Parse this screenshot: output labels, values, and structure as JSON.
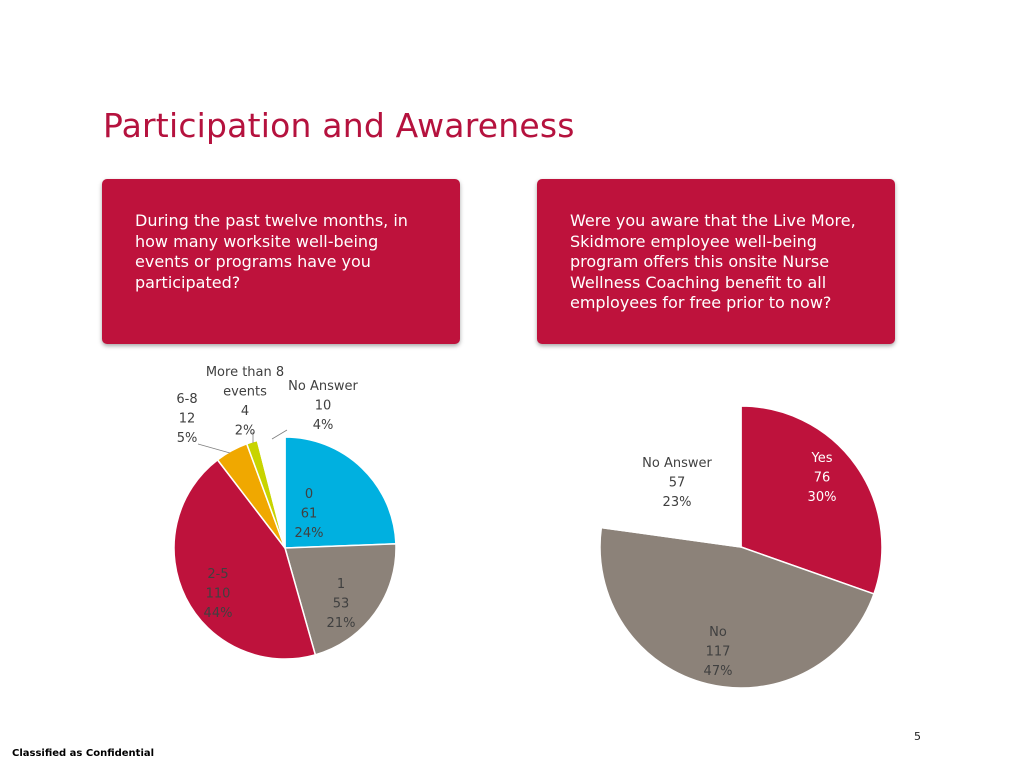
{
  "slide": {
    "title": "Participation and Awareness",
    "page_number": "5",
    "footer": "Classified as Confidential"
  },
  "questions": [
    "During the past twelve months, in how many worksite well-being events or programs have you participated?",
    "Were you aware that the Live More, Skidmore employee well-being program offers this onsite Nurse Wellness Coaching benefit to all employees for free prior to now?"
  ],
  "chart_data": [
    {
      "type": "pie",
      "title": "",
      "categories": [
        "0",
        "1",
        "2-5",
        "6-8",
        "More than 8 events",
        "No Answer"
      ],
      "values": [
        61,
        53,
        110,
        12,
        4,
        10
      ],
      "percent_labels": [
        "24%",
        "21%",
        "44%",
        "5%",
        "2%",
        "4%"
      ],
      "colors": [
        "#00b0e0",
        "#8c8279",
        "#be123c",
        "#f0a800",
        "#c8d400",
        "#ffffff"
      ],
      "label_lines": [
        [
          "0"
        ],
        [
          "1"
        ],
        [
          "2-5"
        ],
        [
          "6-8"
        ],
        [
          "More than 8",
          "events"
        ],
        [
          "No Answer"
        ]
      ],
      "legend": "none"
    },
    {
      "type": "pie",
      "title": "",
      "categories": [
        "Yes",
        "No",
        "No Answer"
      ],
      "values": [
        76,
        117,
        57
      ],
      "percent_labels": [
        "30%",
        "47%",
        "23%"
      ],
      "colors": [
        "#be123c",
        "#8c8279",
        "#ffffff"
      ],
      "label_lines": [
        [
          "Yes"
        ],
        [
          "No"
        ],
        [
          "No Answer"
        ]
      ],
      "legend": "none"
    }
  ]
}
